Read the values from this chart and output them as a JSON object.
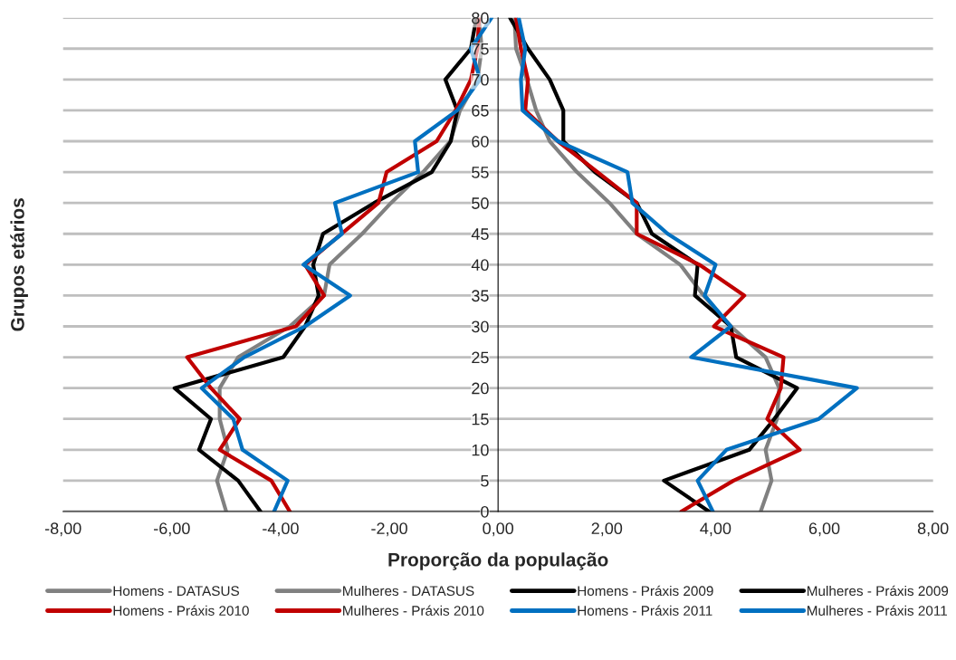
{
  "chart_data": {
    "type": "line",
    "xlabel": "Proporção da população",
    "ylabel": "Grupos etários",
    "xlim": [
      -8,
      8
    ],
    "ylim": [
      0,
      80
    ],
    "xticks": [
      {
        "value": -8,
        "label": "-8,00"
      },
      {
        "value": -6,
        "label": "-6,00"
      },
      {
        "value": -4,
        "label": "-4,00"
      },
      {
        "value": -2,
        "label": "-2,00"
      },
      {
        "value": 0,
        "label": "0,00"
      },
      {
        "value": 2,
        "label": "2,00"
      },
      {
        "value": 4,
        "label": "4,00"
      },
      {
        "value": 6,
        "label": "6,00"
      },
      {
        "value": 8,
        "label": "8,00"
      }
    ],
    "yticks": [
      0,
      5,
      10,
      15,
      20,
      25,
      30,
      35,
      40,
      45,
      50,
      55,
      60,
      65,
      70,
      75,
      80
    ],
    "grid": "y",
    "legend": "bottom",
    "marker": "none",
    "line_style": "solid",
    "series": [
      {
        "name": "Homens - DATASUS",
        "color": "#808080",
        "x": [
          -5.0,
          -5.17,
          -4.97,
          -5.12,
          -5.12,
          -4.78,
          -3.83,
          -3.2,
          -3.1,
          -2.5,
          -1.97,
          -1.38,
          -0.88,
          -0.7,
          -0.38,
          -0.3,
          -0.35
        ],
        "values": [
          0,
          5,
          10,
          15,
          20,
          25,
          30,
          35,
          40,
          45,
          50,
          55,
          60,
          65,
          70,
          75,
          80
        ]
      },
      {
        "name": "Mulheres - DATASUS",
        "color": "#808080",
        "x": [
          4.83,
          5.03,
          4.92,
          5.13,
          5.17,
          4.92,
          4.28,
          3.78,
          3.35,
          2.55,
          2.05,
          1.45,
          0.95,
          0.7,
          0.53,
          0.33,
          0.3
        ],
        "values": [
          0,
          5,
          10,
          15,
          20,
          25,
          30,
          35,
          40,
          45,
          50,
          55,
          60,
          65,
          70,
          75,
          80
        ]
      },
      {
        "name": "Homens - Práxis 2009",
        "color": "#000000",
        "x": [
          -4.37,
          -4.78,
          -5.5,
          -5.28,
          -5.95,
          -3.95,
          -3.55,
          -3.3,
          -3.4,
          -3.22,
          -2.28,
          -1.22,
          -0.87,
          -0.75,
          -0.97,
          -0.5,
          -0.4
        ],
        "values": [
          0,
          5,
          10,
          15,
          20,
          25,
          30,
          35,
          40,
          45,
          50,
          55,
          60,
          65,
          70,
          75,
          80
        ]
      },
      {
        "name": "Mulheres - Práxis 2009",
        "color": "#000000",
        "x": [
          3.88,
          3.05,
          4.62,
          5.08,
          5.5,
          4.38,
          4.28,
          3.62,
          3.67,
          2.83,
          2.55,
          1.78,
          1.2,
          1.2,
          0.95,
          0.55,
          0.22
        ],
        "values": [
          0,
          5,
          10,
          15,
          20,
          25,
          30,
          35,
          40,
          45,
          50,
          55,
          60,
          65,
          70,
          75,
          80
        ]
      },
      {
        "name": "Homens - Práxis 2010",
        "color": "#c00000",
        "x": [
          -3.83,
          -4.17,
          -5.12,
          -4.75,
          -5.28,
          -5.72,
          -3.72,
          -3.2,
          -3.55,
          -2.88,
          -2.2,
          -2.05,
          -1.13,
          -0.78,
          -0.5,
          -0.38,
          -0.35
        ],
        "values": [
          0,
          5,
          10,
          15,
          20,
          25,
          30,
          35,
          40,
          45,
          50,
          55,
          60,
          65,
          70,
          75,
          80
        ]
      },
      {
        "name": "Mulheres - Práxis 2010",
        "color": "#c00000",
        "x": [
          3.37,
          4.33,
          5.55,
          4.95,
          5.2,
          5.25,
          3.97,
          4.53,
          3.7,
          2.55,
          2.55,
          1.83,
          1.1,
          0.5,
          0.55,
          0.42,
          0.33
        ],
        "values": [
          0,
          5,
          10,
          15,
          20,
          25,
          30,
          35,
          40,
          45,
          50,
          55,
          60,
          65,
          70,
          75,
          80
        ]
      },
      {
        "name": "Homens - Práxis 2011",
        "color": "#0070c0",
        "x": [
          -4.12,
          -3.87,
          -4.7,
          -4.87,
          -5.45,
          -4.67,
          -3.55,
          -2.72,
          -3.58,
          -2.87,
          -3.0,
          -1.47,
          -1.53,
          -0.75,
          -0.33,
          -0.5,
          -0.12
        ],
        "values": [
          0,
          5,
          10,
          15,
          20,
          25,
          30,
          35,
          40,
          45,
          50,
          55,
          60,
          65,
          70,
          75,
          80
        ]
      },
      {
        "name": "Mulheres - Práxis 2011",
        "color": "#0070c0",
        "x": [
          3.95,
          3.67,
          4.2,
          5.9,
          6.6,
          3.55,
          4.28,
          3.8,
          4.0,
          3.12,
          2.47,
          2.38,
          1.1,
          0.45,
          0.42,
          0.5,
          0.38
        ],
        "values": [
          0,
          5,
          10,
          15,
          20,
          25,
          30,
          35,
          40,
          45,
          50,
          55,
          60,
          65,
          70,
          75,
          80
        ]
      }
    ]
  }
}
